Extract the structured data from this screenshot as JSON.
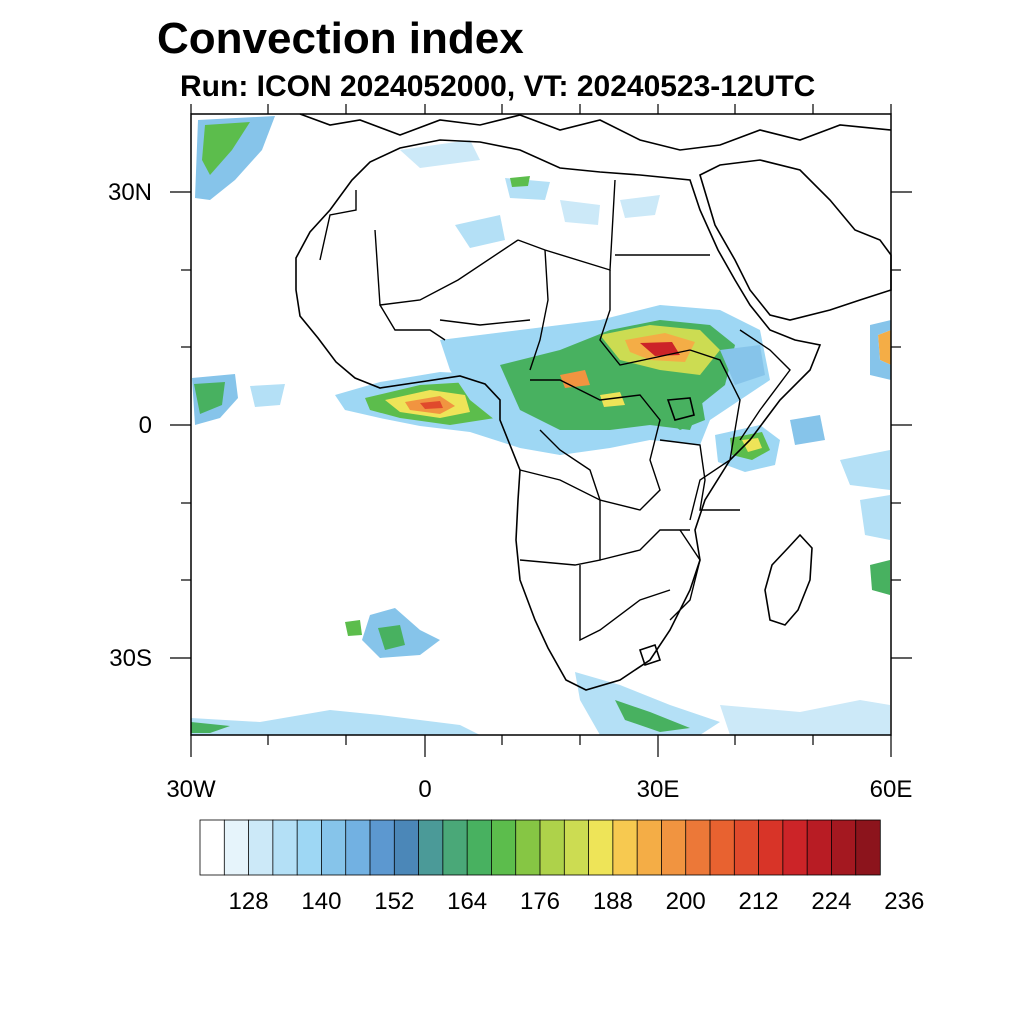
{
  "header": {
    "title": "Convection index",
    "subtitle": "Run: ICON 2024052000,  VT: 20240523-12UTC"
  },
  "axes": {
    "lat_labels": [
      "30N",
      "0",
      "30S"
    ],
    "lon_labels": [
      "30W",
      "0",
      "30E",
      "60E"
    ]
  },
  "map_extent": {
    "lon_min": -30,
    "lon_max": 60,
    "lat_min": -40,
    "lat_max": 40
  },
  "colorbar": {
    "tick_labels": [
      "128",
      "140",
      "152",
      "164",
      "176",
      "188",
      "200",
      "212",
      "224",
      "236"
    ],
    "colors": [
      "#ffffff",
      "#e6f4fb",
      "#cce9f8",
      "#b4e0f6",
      "#9ed7f4",
      "#86c4ea",
      "#72b1e2",
      "#5c98d0",
      "#4b87b8",
      "#4b9a98",
      "#4aa878",
      "#48b160",
      "#5cbd4c",
      "#86c644",
      "#aed24a",
      "#ccdc52",
      "#eee458",
      "#f7c950",
      "#f4ad46",
      "#f19440",
      "#ec7838",
      "#e86230",
      "#e04a2c",
      "#d83428",
      "#cc2428",
      "#b81c24",
      "#a41820",
      "#8c141c"
    ]
  }
}
